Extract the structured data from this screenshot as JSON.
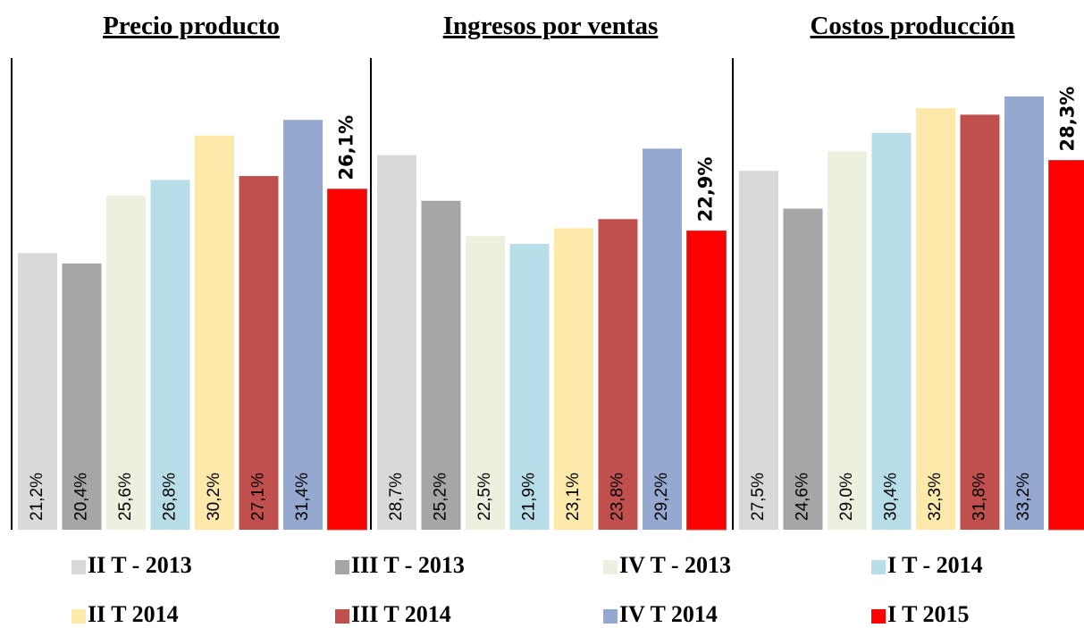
{
  "legend": {
    "names": [
      "II T - 2013",
      "III T - 2013",
      "IV T - 2013",
      "I T - 2014",
      "II T 2014",
      "III T 2014",
      "IV T 2014",
      "I T 2015"
    ],
    "colors": [
      "#d9d9d9",
      "#a6a6a6",
      "#ebf1de",
      "#b7dee8",
      "#fde9a9",
      "#c0504d",
      "#95a9d0",
      "#ff0000"
    ]
  },
  "chart_data": [
    {
      "type": "bar",
      "title": "Precio producto",
      "values": [
        21.2,
        20.4,
        25.6,
        26.8,
        30.2,
        27.1,
        31.4,
        26.1
      ],
      "value_labels": [
        "21,2%",
        "20,4%",
        "25,6%",
        "26,8%",
        "30,2%",
        "27,1%",
        "31,4%",
        "26,1%"
      ],
      "ylim": [
        0,
        36
      ]
    },
    {
      "type": "bar",
      "title": "Ingresos por ventas",
      "values": [
        28.7,
        25.2,
        22.5,
        21.9,
        23.1,
        23.8,
        29.2,
        22.9
      ],
      "value_labels": [
        "28,7%",
        "25,2%",
        "22,5%",
        "21,9%",
        "23,1%",
        "23,8%",
        "29,2%",
        "22,9%"
      ],
      "ylim": [
        0,
        36
      ]
    },
    {
      "type": "bar",
      "title": "Costos producción",
      "values": [
        27.5,
        24.6,
        29.0,
        30.4,
        32.3,
        31.8,
        33.2,
        28.3
      ],
      "value_labels": [
        "27,5%",
        "24,6%",
        "29,0%",
        "30,4%",
        "32,3%",
        "31,8%",
        "33,2%",
        "28,3%"
      ],
      "ylim": [
        0,
        36
      ]
    }
  ]
}
